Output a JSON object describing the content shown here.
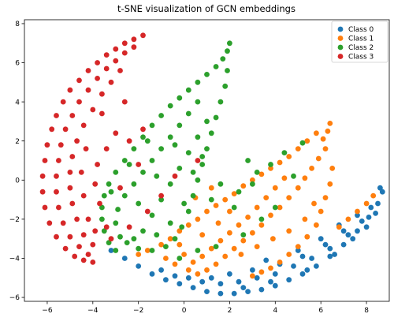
{
  "chart_data": {
    "type": "scatter",
    "title": "t-SNE visualization of GCN embeddings",
    "xlabel": "",
    "ylabel": "",
    "xlim": [
      -7,
      9
    ],
    "ylim": [
      -6.2,
      8.2
    ],
    "xticks": [
      "−6",
      "−4",
      "−2",
      "0",
      "2",
      "4",
      "6",
      "8"
    ],
    "xtick_values": [
      -6,
      -4,
      -2,
      0,
      2,
      4,
      6,
      8
    ],
    "yticks": [
      "−6",
      "−4",
      "−2",
      "0",
      "2",
      "4",
      "6",
      "8"
    ],
    "ytick_values": [
      -6,
      -4,
      -2,
      0,
      2,
      4,
      6,
      8
    ],
    "grid": false,
    "legend_position": "top-right",
    "series": [
      {
        "name": "Class 0",
        "color": "#1f77b4",
        "points": [
          [
            -3.2,
            -3.6
          ],
          [
            -2.6,
            -4.0
          ],
          [
            -2.0,
            -4.4
          ],
          [
            -1.4,
            -4.8
          ],
          [
            -0.8,
            -5.1
          ],
          [
            -0.2,
            -5.3
          ],
          [
            0.4,
            -5.5
          ],
          [
            1.0,
            -5.7
          ],
          [
            1.6,
            -5.8
          ],
          [
            2.2,
            -5.8
          ],
          [
            2.8,
            -5.7
          ],
          [
            3.4,
            -5.6
          ],
          [
            4.0,
            -5.4
          ],
          [
            4.6,
            -5.1
          ],
          [
            5.2,
            -4.8
          ],
          [
            5.8,
            -4.4
          ],
          [
            6.4,
            -3.9
          ],
          [
            7.0,
            -3.3
          ],
          [
            7.6,
            -2.6
          ],
          [
            8.1,
            -1.9
          ],
          [
            8.5,
            -1.2
          ],
          [
            8.7,
            -0.6
          ],
          [
            8.6,
            -0.4
          ],
          [
            0.8,
            -5.2
          ],
          [
            1.6,
            -5.3
          ],
          [
            2.4,
            -5.2
          ],
          [
            3.2,
            -5.0
          ],
          [
            4.0,
            -4.8
          ],
          [
            4.8,
            -4.4
          ],
          [
            5.6,
            -4.0
          ],
          [
            6.4,
            -3.5
          ],
          [
            7.2,
            -2.8
          ],
          [
            7.8,
            -2.1
          ],
          [
            8.2,
            -1.4
          ],
          [
            2.0,
            -4.8
          ],
          [
            3.0,
            -4.6
          ],
          [
            4.2,
            -4.3
          ],
          [
            5.2,
            -3.9
          ],
          [
            6.2,
            -3.3
          ],
          [
            7.0,
            -2.6
          ],
          [
            7.6,
            -1.8
          ],
          [
            3.6,
            -4.1
          ],
          [
            5.0,
            -3.6
          ],
          [
            6.0,
            -3.0
          ],
          [
            6.8,
            -2.3
          ],
          [
            8.0,
            -2.4
          ],
          [
            -1.0,
            -4.6
          ],
          [
            -0.4,
            -4.9
          ],
          [
            0.2,
            -5.0
          ],
          [
            1.2,
            -5.0
          ],
          [
            2.6,
            -5.5
          ],
          [
            3.8,
            -5.2
          ],
          [
            5.4,
            -4.6
          ],
          [
            6.6,
            -3.8
          ],
          [
            7.4,
            -3.0
          ],
          [
            8.4,
            -1.7
          ]
        ]
      },
      {
        "name": "Class 1",
        "color": "#ff7f0e",
        "points": [
          [
            6.4,
            2.9
          ],
          [
            6.3,
            2.5
          ],
          [
            6.1,
            2.1
          ],
          [
            5.8,
            2.4
          ],
          [
            5.4,
            2.0
          ],
          [
            5.0,
            1.6
          ],
          [
            4.6,
            1.2
          ],
          [
            4.2,
            0.9
          ],
          [
            3.8,
            0.6
          ],
          [
            3.4,
            0.3
          ],
          [
            3.0,
            0.0
          ],
          [
            2.6,
            -0.3
          ],
          [
            2.2,
            -0.7
          ],
          [
            1.8,
            -1.0
          ],
          [
            1.4,
            -1.3
          ],
          [
            1.0,
            -1.6
          ],
          [
            0.6,
            -2.0
          ],
          [
            0.2,
            -2.3
          ],
          [
            -0.2,
            -2.6
          ],
          [
            -0.6,
            -3.0
          ],
          [
            -1.0,
            -3.3
          ],
          [
            -1.6,
            -3.6
          ],
          [
            -2.0,
            -3.8
          ],
          [
            6.2,
            1.6
          ],
          [
            5.9,
            1.1
          ],
          [
            5.6,
            0.6
          ],
          [
            5.3,
            0.1
          ],
          [
            5.0,
            -0.4
          ],
          [
            4.6,
            -0.9
          ],
          [
            4.2,
            -1.4
          ],
          [
            3.8,
            -1.8
          ],
          [
            3.4,
            -2.3
          ],
          [
            3.0,
            -2.7
          ],
          [
            2.6,
            -3.1
          ],
          [
            2.2,
            -3.5
          ],
          [
            1.8,
            -3.9
          ],
          [
            1.4,
            -4.3
          ],
          [
            1.0,
            -4.6
          ],
          [
            0.6,
            -4.8
          ],
          [
            0.2,
            -4.6
          ],
          [
            -0.4,
            -4.3
          ],
          [
            -0.8,
            -4.0
          ],
          [
            6.5,
            0.6
          ],
          [
            6.4,
            -0.2
          ],
          [
            6.2,
            -0.9
          ],
          [
            6.0,
            -1.6
          ],
          [
            5.8,
            -2.3
          ],
          [
            5.4,
            -2.9
          ],
          [
            5.0,
            -3.4
          ],
          [
            4.6,
            -3.8
          ],
          [
            4.2,
            -4.2
          ],
          [
            3.8,
            -4.5
          ],
          [
            3.4,
            -4.7
          ],
          [
            3.0,
            -4.9
          ],
          [
            4.4,
            0.1
          ],
          [
            4.0,
            -0.4
          ],
          [
            3.6,
            -0.9
          ],
          [
            3.2,
            -1.4
          ],
          [
            2.8,
            -1.9
          ],
          [
            2.4,
            -2.3
          ],
          [
            2.0,
            -2.7
          ],
          [
            1.6,
            -3.1
          ],
          [
            1.2,
            -3.5
          ],
          [
            0.8,
            -3.9
          ],
          [
            0.4,
            -4.2
          ],
          [
            0.0,
            -3.8
          ],
          [
            2.5,
            -3.8
          ],
          [
            3.2,
            -3.4
          ],
          [
            3.9,
            -3.0
          ],
          [
            4.6,
            -2.6
          ],
          [
            5.3,
            -2.0
          ],
          [
            5.7,
            -1.2
          ],
          [
            1.5,
            -2.2
          ],
          [
            2.0,
            -1.6
          ],
          [
            0.8,
            -2.8
          ],
          [
            -0.2,
            -3.3
          ],
          [
            1.2,
            -0.4
          ],
          [
            0.5,
            -0.9
          ],
          [
            8.0,
            -1.2
          ],
          [
            7.6,
            -1.6
          ],
          [
            7.2,
            -2.0
          ],
          [
            6.8,
            -2.4
          ],
          [
            8.3,
            -0.8
          ]
        ]
      },
      {
        "name": "Class 2",
        "color": "#2ca02c",
        "points": [
          [
            2.0,
            7.0
          ],
          [
            1.9,
            6.6
          ],
          [
            1.7,
            6.2
          ],
          [
            1.4,
            5.8
          ],
          [
            1.0,
            5.4
          ],
          [
            0.6,
            5.0
          ],
          [
            0.2,
            4.6
          ],
          [
            -0.2,
            4.2
          ],
          [
            -0.6,
            3.8
          ],
          [
            -1.0,
            3.3
          ],
          [
            -1.4,
            2.8
          ],
          [
            -1.8,
            2.2
          ],
          [
            -2.2,
            1.6
          ],
          [
            -2.6,
            1.0
          ],
          [
            -3.0,
            0.4
          ],
          [
            -3.3,
            -0.2
          ],
          [
            -3.5,
            -0.8
          ],
          [
            -3.6,
            -1.4
          ],
          [
            -3.6,
            -2.0
          ],
          [
            -3.5,
            -2.6
          ],
          [
            -3.3,
            -3.2
          ],
          [
            -3.0,
            -3.6
          ],
          [
            1.9,
            5.6
          ],
          [
            1.8,
            4.8
          ],
          [
            1.6,
            4.0
          ],
          [
            1.4,
            3.2
          ],
          [
            1.2,
            2.4
          ],
          [
            1.0,
            1.6
          ],
          [
            0.8,
            0.8
          ],
          [
            0.6,
            0.0
          ],
          [
            0.4,
            -0.8
          ],
          [
            0.2,
            -1.6
          ],
          [
            -0.1,
            -2.4
          ],
          [
            -0.4,
            -3.0
          ],
          [
            -0.8,
            -3.4
          ],
          [
            -1.4,
            -3.6
          ],
          [
            -2.0,
            -3.5
          ],
          [
            -2.5,
            -3.2
          ],
          [
            0.6,
            4.0
          ],
          [
            0.2,
            3.4
          ],
          [
            -0.2,
            2.8
          ],
          [
            -0.6,
            2.2
          ],
          [
            -1.0,
            1.6
          ],
          [
            -1.4,
            1.0
          ],
          [
            -1.8,
            0.4
          ],
          [
            -2.2,
            -0.2
          ],
          [
            -2.6,
            -0.8
          ],
          [
            -2.9,
            -1.5
          ],
          [
            -3.0,
            -2.2
          ],
          [
            -2.8,
            -2.9
          ],
          [
            1.0,
            3.0
          ],
          [
            0.6,
            2.2
          ],
          [
            0.2,
            1.4
          ],
          [
            -0.2,
            0.6
          ],
          [
            -0.6,
            -0.2
          ],
          [
            -1.0,
            -1.0
          ],
          [
            -1.4,
            -1.8
          ],
          [
            -1.8,
            -2.6
          ],
          [
            -2.2,
            -3.0
          ],
          [
            -1.2,
            -2.8
          ],
          [
            -0.6,
            -2.2
          ],
          [
            0.0,
            -1.2
          ],
          [
            0.4,
            0.4
          ],
          [
            0.8,
            1.2
          ],
          [
            -0.4,
            1.8
          ],
          [
            -1.2,
            0.2
          ],
          [
            -2.0,
            -1.2
          ],
          [
            -1.6,
            2.0
          ],
          [
            -2.4,
            0.8
          ],
          [
            -3.2,
            -0.6
          ],
          [
            1.6,
            -0.2
          ],
          [
            2.4,
            -0.6
          ],
          [
            3.0,
            -0.2
          ],
          [
            3.8,
            0.8
          ],
          [
            4.4,
            1.4
          ],
          [
            2.2,
            -1.4
          ],
          [
            1.2,
            -1.0
          ],
          [
            3.2,
            0.4
          ],
          [
            4.0,
            -1.4
          ],
          [
            3.4,
            -2.0
          ],
          [
            2.6,
            -2.8
          ],
          [
            1.4,
            -3.4
          ],
          [
            0.6,
            -3.6
          ],
          [
            -0.2,
            -4.0
          ],
          [
            2.8,
            1.0
          ],
          [
            5.2,
            1.9
          ],
          [
            4.8,
            0.2
          ]
        ]
      },
      {
        "name": "Class 3",
        "color": "#d62728",
        "points": [
          [
            -1.8,
            7.4
          ],
          [
            -2.2,
            7.2
          ],
          [
            -2.6,
            7.0
          ],
          [
            -3.0,
            6.7
          ],
          [
            -3.4,
            6.4
          ],
          [
            -3.8,
            6.0
          ],
          [
            -4.2,
            5.6
          ],
          [
            -4.6,
            5.1
          ],
          [
            -5.0,
            4.6
          ],
          [
            -5.3,
            4.0
          ],
          [
            -5.6,
            3.3
          ],
          [
            -5.8,
            2.6
          ],
          [
            -6.0,
            1.8
          ],
          [
            -6.1,
            1.0
          ],
          [
            -6.2,
            0.2
          ],
          [
            -6.2,
            -0.6
          ],
          [
            -6.1,
            -1.4
          ],
          [
            -5.9,
            -2.2
          ],
          [
            -5.6,
            -2.9
          ],
          [
            -5.2,
            -3.5
          ],
          [
            -4.8,
            -3.9
          ],
          [
            -4.4,
            -4.1
          ],
          [
            -4.0,
            -4.2
          ],
          [
            -2.2,
            6.8
          ],
          [
            -2.6,
            6.5
          ],
          [
            -3.0,
            6.1
          ],
          [
            -3.4,
            5.7
          ],
          [
            -3.8,
            5.2
          ],
          [
            -4.2,
            4.6
          ],
          [
            -4.6,
            4.0
          ],
          [
            -4.9,
            3.3
          ],
          [
            -5.2,
            2.6
          ],
          [
            -5.4,
            1.8
          ],
          [
            -5.5,
            1.0
          ],
          [
            -5.6,
            0.2
          ],
          [
            -5.6,
            -0.6
          ],
          [
            -5.5,
            -1.4
          ],
          [
            -5.3,
            -2.2
          ],
          [
            -5.0,
            -2.9
          ],
          [
            -4.6,
            -3.4
          ],
          [
            -4.2,
            -3.8
          ],
          [
            -2.8,
            5.6
          ],
          [
            -3.2,
            5.0
          ],
          [
            -3.6,
            4.4
          ],
          [
            -4.0,
            3.6
          ],
          [
            -4.4,
            2.8
          ],
          [
            -4.7,
            2.0
          ],
          [
            -4.9,
            1.2
          ],
          [
            -5.0,
            0.4
          ],
          [
            -5.0,
            -0.4
          ],
          [
            -4.9,
            -1.2
          ],
          [
            -4.7,
            -2.0
          ],
          [
            -4.4,
            -2.8
          ],
          [
            -4.0,
            -3.3
          ],
          [
            -4.3,
            1.6
          ],
          [
            -4.5,
            0.4
          ],
          [
            -4.4,
            -0.8
          ],
          [
            -4.2,
            -2.0
          ],
          [
            -3.9,
            -2.6
          ],
          [
            -3.0,
            2.4
          ],
          [
            -3.4,
            1.6
          ],
          [
            -3.8,
            0.8
          ],
          [
            -3.9,
            -0.2
          ],
          [
            -3.7,
            -1.2
          ],
          [
            -3.4,
            -2.4
          ],
          [
            -2.4,
            2.0
          ],
          [
            -1.8,
            2.6
          ],
          [
            -2.0,
            0.8
          ],
          [
            -2.8,
            -0.4
          ],
          [
            -1.6,
            -1.6
          ],
          [
            -2.4,
            -2.4
          ],
          [
            -1.0,
            -0.8
          ],
          [
            -0.4,
            0.2
          ],
          [
            0.6,
            1.0
          ],
          [
            -3.6,
            3.4
          ],
          [
            -2.6,
            4.0
          ],
          [
            -3.2,
            -3.0
          ]
        ]
      }
    ]
  }
}
